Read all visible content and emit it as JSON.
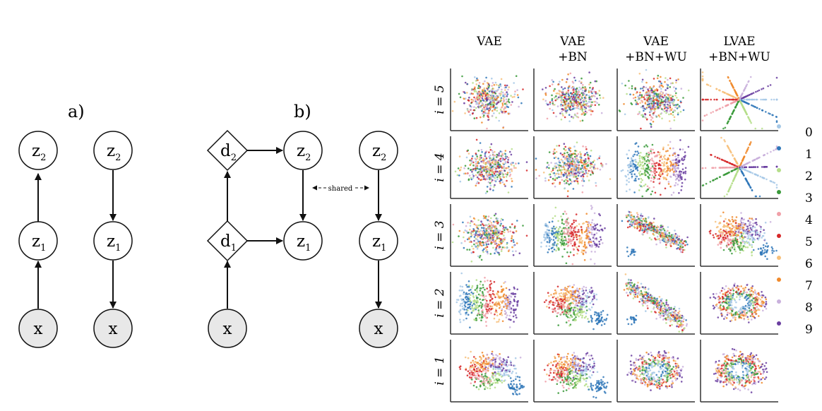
{
  "panel_a": {
    "label": "a)"
  },
  "panel_b": {
    "label": "b)",
    "shared_label": "shared"
  },
  "nodes": {
    "z": "z",
    "d": "d",
    "x": "x",
    "sub1": "1",
    "sub2": "2"
  },
  "grid": {
    "columns": [
      {
        "line1": "VAE",
        "line2": ""
      },
      {
        "line1": "VAE",
        "line2": "+BN"
      },
      {
        "line1": "VAE",
        "line2": "+BN+WU"
      },
      {
        "line1": "LVAE",
        "line2": "+BN+WU"
      }
    ],
    "rows": [
      "i = 5",
      "i = 4",
      "i = 3",
      "i = 2",
      "i = 1"
    ]
  },
  "legend": {
    "labels": [
      "0",
      "1",
      "2",
      "3",
      "4",
      "5",
      "6",
      "7",
      "8",
      "9"
    ],
    "colors": [
      "#a6c8e6",
      "#2f77b8",
      "#b5de8a",
      "#3a9a3a",
      "#f0a0a8",
      "#d62728",
      "#f7c07a",
      "#f08a2c",
      "#c9b0dc",
      "#6a3ea0"
    ]
  }
}
